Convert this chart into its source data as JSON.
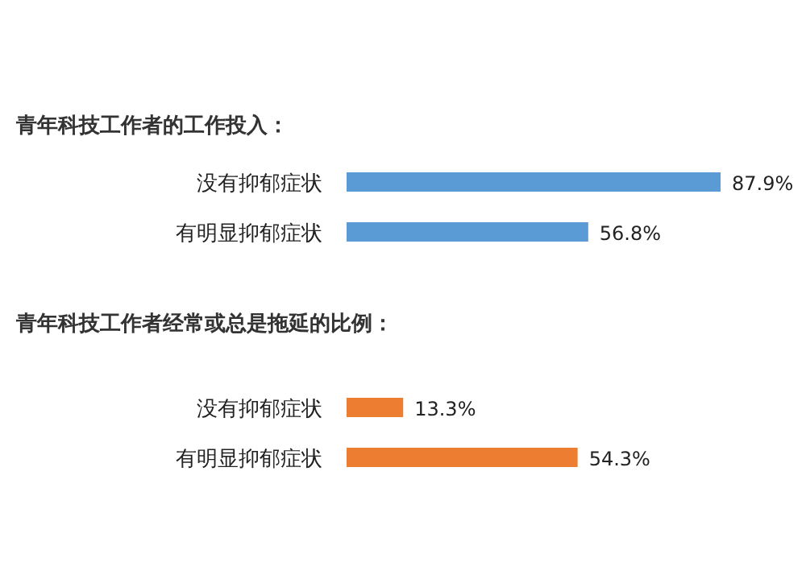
{
  "chart_data": [
    {
      "type": "bar",
      "orientation": "horizontal",
      "title": "青年科技工作者的工作投入：",
      "categories": [
        "没有抑郁症状",
        "有明显抑郁症状"
      ],
      "values": [
        87.9,
        56.8
      ],
      "value_labels": [
        "87.9%",
        "56.8%"
      ],
      "color": "#5b9bd5"
    },
    {
      "type": "bar",
      "orientation": "horizontal",
      "title": "青年科技工作者经常或总是拖延的比例：",
      "categories": [
        "没有抑郁症状",
        "有明显抑郁症状"
      ],
      "values": [
        13.3,
        54.3
      ],
      "value_labels": [
        "13.3%",
        "54.3%"
      ],
      "color": "#ed7d31"
    }
  ]
}
